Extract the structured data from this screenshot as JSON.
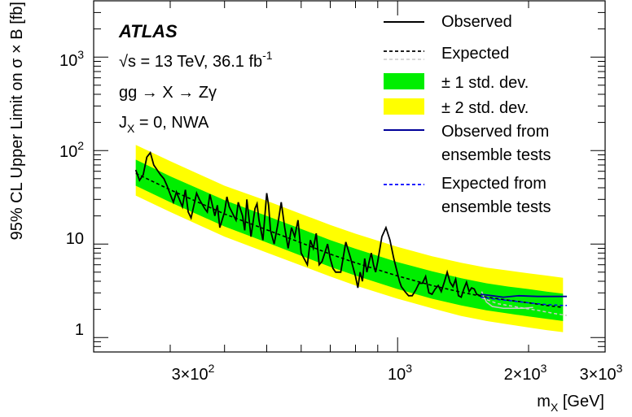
{
  "chart_data": {
    "type": "line",
    "xscale": "log",
    "yscale": "log",
    "xlim": [
      200,
      3000
    ],
    "ylim": [
      0.7,
      4000
    ],
    "xlabel_main": "m",
    "xlabel_sub": "X",
    "xlabel_unit": " [GeV]",
    "ylabel": "95% CL Upper Limit on σ × B [fb]",
    "x_ticks": [
      {
        "value": 300,
        "mant": "3×10",
        "exp": "2"
      },
      {
        "value": 1000,
        "mant": "10",
        "exp": "3"
      },
      {
        "value": 2000,
        "mant": "2×10",
        "exp": "3"
      },
      {
        "value": 3000,
        "mant": "3×10",
        "exp": "3"
      }
    ],
    "y_ticks": [
      {
        "value": 1,
        "mant": "1",
        "exp": ""
      },
      {
        "value": 10,
        "mant": "10",
        "exp": ""
      },
      {
        "value": 100,
        "mant": "10",
        "exp": "2"
      },
      {
        "value": 1000,
        "mant": "10",
        "exp": "3"
      }
    ],
    "annotations": {
      "experiment": "ATLAS",
      "sqrt": "√s",
      "energy": " = 13 TeV, 36.1 fb",
      "energy_exp": "-1",
      "process": "gg → X → Zγ",
      "spin_main": "J",
      "spin_sub": "X",
      "spin_rest": " = 0, NWA"
    },
    "legend_position": "top-right",
    "legend": [
      {
        "key": "observed",
        "label": "Observed"
      },
      {
        "key": "expected",
        "label": "Expected"
      },
      {
        "key": "band1",
        "label": "± 1 std. dev."
      },
      {
        "key": "band2",
        "label": "± 2 std. dev."
      },
      {
        "key": "obs_ens",
        "label": "Observed from",
        "label2": "ensemble tests"
      },
      {
        "key": "exp_ens",
        "label": "Expected from",
        "label2": "ensemble tests"
      }
    ],
    "colors": {
      "observed": "#000000",
      "expected": "#000000",
      "band1": "#00ee00",
      "band2": "#ffff00",
      "obs_ens": "#000099",
      "exp_ens": "#0000ff",
      "legacy_gray": "#c8c8c8"
    },
    "expected": {
      "x": [
        250,
        300,
        400,
        500,
        600,
        700,
        800,
        1000,
        1200,
        1400,
        1600,
        1800,
        2000,
        2200,
        2400
      ],
      "y": [
        57,
        38,
        21,
        14.2,
        10.3,
        7.8,
        6.3,
        4.55,
        3.6,
        3.05,
        2.7,
        2.5,
        2.35,
        2.2,
        2.1
      ]
    },
    "band1": {
      "x": [
        250,
        300,
        400,
        500,
        600,
        700,
        800,
        1000,
        1200,
        1400,
        1600,
        1800,
        2000,
        2200,
        2400
      ],
      "lo": [
        42,
        28,
        15.4,
        10.4,
        7.5,
        5.7,
        4.6,
        3.3,
        2.6,
        2.2,
        1.95,
        1.8,
        1.68,
        1.58,
        1.5
      ],
      "hi": [
        80,
        53,
        29.5,
        20,
        14.5,
        11,
        8.9,
        6.4,
        5.1,
        4.3,
        3.8,
        3.5,
        3.3,
        3.1,
        2.95
      ]
    },
    "band2": {
      "x": [
        250,
        300,
        400,
        500,
        600,
        700,
        800,
        1000,
        1200,
        1400,
        1600,
        1800,
        2000,
        2200,
        2400
      ],
      "lo": [
        33,
        22,
        12,
        8.1,
        5.9,
        4.5,
        3.6,
        2.6,
        2.05,
        1.7,
        1.5,
        1.38,
        1.28,
        1.2,
        1.14
      ],
      "hi": [
        115,
        77,
        42,
        29,
        21,
        16,
        12.9,
        9.3,
        7.4,
        6.3,
        5.6,
        5.2,
        4.85,
        4.6,
        4.35
      ]
    },
    "observed": {
      "x": [
        250,
        255,
        260,
        265,
        270,
        275,
        280,
        285,
        290,
        295,
        300,
        305,
        310,
        315,
        320,
        325,
        330,
        335,
        340,
        345,
        350,
        360,
        365,
        370,
        380,
        385,
        390,
        400,
        405,
        410,
        420,
        425,
        430,
        440,
        445,
        450,
        460,
        470,
        475,
        480,
        490,
        500,
        505,
        510,
        520,
        530,
        540,
        550,
        560,
        570,
        580,
        590,
        600,
        620,
        630,
        640,
        650,
        660,
        670,
        680,
        690,
        700,
        710,
        720,
        740,
        760,
        780,
        800,
        810,
        820,
        830,
        840,
        850,
        860,
        870,
        880,
        890,
        900,
        920,
        940,
        960,
        980,
        1000,
        1010,
        1020,
        1040,
        1060,
        1080,
        1100,
        1120,
        1140,
        1160,
        1180,
        1200,
        1220,
        1240,
        1260,
        1280,
        1300,
        1320,
        1340,
        1360,
        1380,
        1400,
        1420,
        1440,
        1460,
        1480,
        1500,
        1520,
        1550
      ],
      "y": [
        62,
        48,
        55,
        85,
        95,
        70,
        62,
        55,
        50,
        42,
        34,
        28,
        36,
        30,
        25,
        38,
        22,
        19,
        26,
        35,
        30,
        24,
        22,
        34,
        20,
        26,
        15,
        22,
        32,
        25,
        20,
        18,
        28,
        20,
        14,
        30,
        12,
        24,
        27,
        18,
        11,
        35,
        26,
        14,
        10,
        16,
        28,
        15,
        9,
        15,
        12,
        18,
        8,
        6,
        11,
        9,
        13,
        6,
        6.5,
        8,
        10,
        7,
        5.5,
        5,
        5,
        10.5,
        7,
        4.5,
        3.4,
        5,
        4,
        7,
        5,
        6.5,
        8,
        6,
        5,
        6.5,
        12,
        15,
        11,
        7,
        4.8,
        4,
        3.5,
        3.1,
        2.8,
        2.8,
        3.2,
        3.8,
        3.8,
        4.5,
        3,
        2.9,
        3.3,
        3.6,
        3.1,
        3.9,
        5,
        3.9,
        3.5,
        4.2,
        2.8,
        2.7,
        3.3,
        3.9,
        3.1,
        3.4,
        3.3,
        2.9,
        2.8
      ]
    },
    "observed_ensemble": {
      "x": [
        1550,
        1650,
        1750,
        1900,
        2100,
        2300,
        2450
      ],
      "y": [
        2.9,
        2.8,
        2.7,
        2.8,
        2.75,
        2.75,
        2.75
      ]
    },
    "expected_ensemble": {
      "x": [
        1550,
        1700,
        1850,
        2000,
        2200,
        2400,
        2450
      ],
      "y": [
        2.7,
        2.55,
        2.45,
        2.35,
        2.25,
        2.2,
        2.2
      ]
    },
    "observed_legacy": {
      "x": [
        1560,
        1600,
        1650,
        1750,
        1850,
        1950,
        2050
      ],
      "y": [
        3.1,
        2.4,
        2.15,
        2.05,
        2.05,
        2.05,
        2.1
      ]
    },
    "expected_legacy": {
      "x": [
        1560,
        1700,
        1900,
        2100,
        2300,
        2450
      ],
      "y": [
        2.65,
        2.3,
        2.1,
        1.95,
        1.8,
        1.72
      ]
    }
  }
}
